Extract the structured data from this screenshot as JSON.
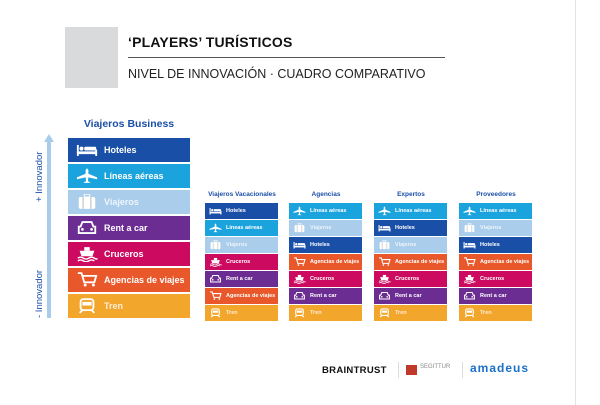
{
  "header": {
    "title": "‘PLAYERS’ TURÍSTICOS",
    "subtitle": "NIVEL DE INNOVACIÓN  · CUADRO COMPARATIVO"
  },
  "axis": {
    "top_label": "+ Innovador",
    "bottom_label": "- Innovador"
  },
  "categories": {
    "hoteles": {
      "label": "Hoteles",
      "color": "#1a4fa8",
      "icon": "bed-icon"
    },
    "lineas": {
      "label": "Líneas aéreas",
      "color": "#1ba3dd",
      "icon": "plane-icon"
    },
    "viajeros": {
      "label": "Viajeros",
      "color": "#a9cdeb",
      "icon": "suitcase-icon"
    },
    "rent": {
      "label": "Rent a car",
      "color": "#6b2d91",
      "icon": "car-icon"
    },
    "cruceros": {
      "label": "Cruceros",
      "color": "#cc0a5f",
      "icon": "ship-icon"
    },
    "agencias": {
      "label": "Agencias de viajes",
      "color": "#e8582a",
      "icon": "cart-icon"
    },
    "tren": {
      "label": "Tren",
      "color": "#f3a62c",
      "icon": "train-icon"
    }
  },
  "columns": [
    {
      "title": "Viajeros Business",
      "ranking": [
        "Hoteles",
        "Líneas aéreas",
        "Viajeros",
        "Rent a car",
        "Cruceros",
        "Agencias de viajes",
        "Tren"
      ]
    },
    {
      "title": "Viajeros Vacacionales",
      "ranking": [
        "Hoteles",
        "Líneas aéreas",
        "Viajeros",
        "Cruceros",
        "Rent a car",
        "Agencias de viajes",
        "Tren"
      ]
    },
    {
      "title": "Agencias",
      "ranking": [
        "Líneas aéreas",
        "Viajeros",
        "Hoteles",
        "Agencias de viajes",
        "Cruceros",
        "Rent a car",
        "Tren"
      ]
    },
    {
      "title": "Expertos",
      "ranking": [
        "Líneas aéreas",
        "Hoteles",
        "Viajeros",
        "Agencias de viajes",
        "Cruceros",
        "Rent a car",
        "Tren"
      ]
    },
    {
      "title": "Proveedores",
      "ranking": [
        "Líneas aéreas",
        "Viajeros",
        "Hoteles",
        "Agencias de viajes",
        "Cruceros",
        "Rent a car",
        "Tren"
      ]
    }
  ],
  "footer": {
    "logos": [
      "BRAINTRUST",
      "SEGITTUR",
      "amadeus"
    ]
  }
}
